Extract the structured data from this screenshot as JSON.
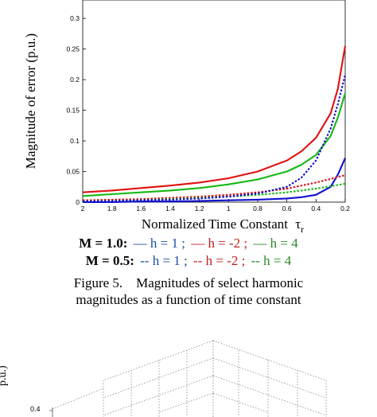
{
  "chart_data": {
    "type": "line",
    "xlabel": "Normalized Time Constant",
    "xlabel_symbol": "τ",
    "xlabel_sub": "r",
    "ylabel": "Magnitude of error (p.u.)",
    "x_reversed": true,
    "xlim": [
      2,
      0.2
    ],
    "ylim": [
      0,
      0.33
    ],
    "x_ticks": [
      {
        "v": 2,
        "label": "2"
      },
      {
        "v": 1.8,
        "label": "1.8"
      },
      {
        "v": 1.6,
        "label": "1.6"
      },
      {
        "v": 1.4,
        "label": "1.4"
      },
      {
        "v": 1.2,
        "label": "1.2"
      },
      {
        "v": 1.0,
        "label": "1"
      },
      {
        "v": 0.8,
        "label": "0.8"
      },
      {
        "v": 0.6,
        "label": "0.6"
      },
      {
        "v": 0.4,
        "label": "0.4"
      },
      {
        "v": 0.2,
        "label": "0.2"
      }
    ],
    "y_ticks": [
      {
        "v": 0,
        "label": "0"
      },
      {
        "v": 0.05,
        "label": "0.05"
      },
      {
        "v": 0.1,
        "label": "0.1"
      },
      {
        "v": 0.15,
        "label": "0.15"
      },
      {
        "v": 0.2,
        "label": "0.2"
      },
      {
        "v": 0.25,
        "label": "0.25"
      },
      {
        "v": 0.3,
        "label": "0.3"
      }
    ],
    "grid": false,
    "x": [
      2.0,
      1.8,
      1.6,
      1.4,
      1.2,
      1.0,
      0.8,
      0.6,
      0.5,
      0.4,
      0.3,
      0.25,
      0.2
    ],
    "series": [
      {
        "color": "#e01010",
        "dash": "solid",
        "values": [
          0.016,
          0.019,
          0.023,
          0.027,
          0.032,
          0.039,
          0.05,
          0.068,
          0.083,
          0.105,
          0.145,
          0.185,
          0.255
        ]
      },
      {
        "color": "#14b814",
        "dash": "solid",
        "values": [
          0.01,
          0.013,
          0.016,
          0.019,
          0.023,
          0.029,
          0.037,
          0.05,
          0.061,
          0.077,
          0.108,
          0.138,
          0.178
        ]
      },
      {
        "color": "#1010d0",
        "dash": "solid",
        "values": [
          0.0,
          0.0,
          0.001,
          0.001,
          0.002,
          0.003,
          0.004,
          0.006,
          0.008,
          0.012,
          0.025,
          0.045,
          0.072
        ]
      },
      {
        "color": "#e01010",
        "dash": "dotted",
        "values": [
          0.003,
          0.004,
          0.005,
          0.007,
          0.009,
          0.012,
          0.016,
          0.022,
          0.027,
          0.032,
          0.038,
          0.041,
          0.044
        ]
      },
      {
        "color": "#14b814",
        "dash": "dotted",
        "values": [
          0.001,
          0.002,
          0.003,
          0.005,
          0.007,
          0.009,
          0.012,
          0.016,
          0.019,
          0.022,
          0.026,
          0.028,
          0.03
        ]
      },
      {
        "color": "#1010d0",
        "dash": "dotted",
        "values": [
          0.001,
          0.002,
          0.003,
          0.004,
          0.006,
          0.009,
          0.014,
          0.025,
          0.04,
          0.068,
          0.12,
          0.16,
          0.208
        ]
      }
    ]
  },
  "legend": {
    "row1": {
      "head": "M = 1.0:",
      "items": [
        {
          "marker": "—",
          "text": "h = 1 ;",
          "color": "#1f4fa0"
        },
        {
          "marker": "—",
          "text": "h = -2 ;",
          "color": "#c02020"
        },
        {
          "marker": "—",
          "text": "h = 4",
          "color": "#2a8a2a"
        }
      ]
    },
    "row2": {
      "head": "M = 0.5:",
      "items": [
        {
          "marker": "--",
          "text": "h = 1 ;",
          "color": "#1f4fa0"
        },
        {
          "marker": "--",
          "text": "h = -2 ;",
          "color": "#c02020"
        },
        {
          "marker": "--",
          "text": "h = 4",
          "color": "#2a8a2a"
        }
      ]
    }
  },
  "caption": {
    "line1": "Figure 5.    Magnitudes of select harmonic",
    "line2": "magnitudes as a function of time constant"
  },
  "lower_figure": {
    "ylabel_fragment": "p.u.)",
    "tick_label": "0.4"
  }
}
